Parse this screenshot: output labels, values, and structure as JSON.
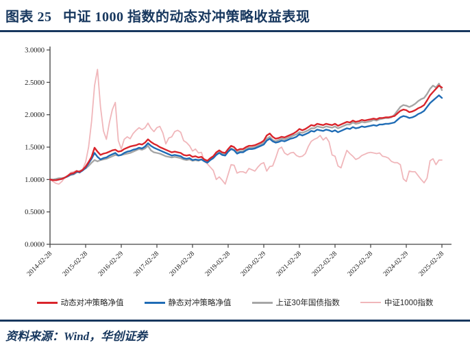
{
  "header": {
    "title": "图表 25   中证 1000 指数的动态对冲策略收益表现"
  },
  "footer": {
    "source": "资料来源：Wind，华创证券"
  },
  "colors": {
    "navy": "#17375e",
    "axis": "#404040",
    "background": "#ffffff"
  },
  "chart_data": {
    "type": "line",
    "title": "",
    "xlabel": "",
    "ylabel": "",
    "ylim": [
      0,
      3
    ],
    "grid": false,
    "legend_position": "bottom",
    "y_tick_labels": [
      "0.0000",
      "0.5000",
      "1.0000",
      "1.5000",
      "2.0000",
      "2.5000",
      "3.0000"
    ],
    "x_tick_labels": [
      "2014-02-28",
      "2015-02-28",
      "2016-02-29",
      "2017-02-28",
      "2018-02-28",
      "2019-02-28",
      "2020-02-29",
      "2021-02-28",
      "2022-02-28",
      "2023-02-28",
      "2024-02-29",
      "2025-02-28"
    ],
    "x_freq": "monthly",
    "x_start": "2014-02",
    "x_end": "2025-02",
    "series": [
      {
        "id": "dynamic-hedge",
        "name": "动态对冲策略净值",
        "color": "#d9242b",
        "line_width": 2.4,
        "values": [
          1.0,
          0.99,
          0.99,
          1.0,
          1.01,
          1.03,
          1.06,
          1.09,
          1.1,
          1.13,
          1.12,
          1.15,
          1.2,
          1.27,
          1.35,
          1.49,
          1.43,
          1.38,
          1.4,
          1.41,
          1.43,
          1.45,
          1.46,
          1.43,
          1.44,
          1.47,
          1.49,
          1.51,
          1.52,
          1.53,
          1.55,
          1.54,
          1.57,
          1.62,
          1.58,
          1.55,
          1.53,
          1.5,
          1.48,
          1.46,
          1.44,
          1.42,
          1.43,
          1.42,
          1.41,
          1.38,
          1.37,
          1.38,
          1.35,
          1.36,
          1.34,
          1.35,
          1.31,
          1.29,
          1.33,
          1.36,
          1.42,
          1.45,
          1.42,
          1.41,
          1.47,
          1.52,
          1.5,
          1.45,
          1.47,
          1.47,
          1.5,
          1.52,
          1.52,
          1.53,
          1.55,
          1.57,
          1.6,
          1.68,
          1.71,
          1.66,
          1.63,
          1.64,
          1.66,
          1.65,
          1.67,
          1.69,
          1.71,
          1.74,
          1.78,
          1.76,
          1.78,
          1.81,
          1.84,
          1.83,
          1.86,
          1.85,
          1.84,
          1.86,
          1.85,
          1.84,
          1.86,
          1.83,
          1.85,
          1.87,
          1.89,
          1.88,
          1.91,
          1.89,
          1.9,
          1.92,
          1.91,
          1.92,
          1.93,
          1.94,
          1.93,
          1.95,
          1.95,
          1.96,
          1.96,
          1.97,
          1.98,
          2.02,
          2.06,
          2.08,
          2.07,
          2.04,
          2.05,
          2.07,
          2.1,
          2.12,
          2.15,
          2.22,
          2.3,
          2.35,
          2.4,
          2.45,
          2.42
        ]
      },
      {
        "id": "static-hedge",
        "name": "静态对冲策略净值",
        "color": "#1f6cb5",
        "line_width": 2.4,
        "values": [
          1.0,
          0.99,
          0.99,
          1.0,
          1.01,
          1.03,
          1.05,
          1.08,
          1.09,
          1.12,
          1.11,
          1.14,
          1.18,
          1.25,
          1.32,
          1.41,
          1.35,
          1.31,
          1.33,
          1.34,
          1.37,
          1.39,
          1.41,
          1.37,
          1.38,
          1.41,
          1.43,
          1.44,
          1.46,
          1.47,
          1.49,
          1.48,
          1.51,
          1.56,
          1.52,
          1.49,
          1.47,
          1.45,
          1.43,
          1.41,
          1.39,
          1.37,
          1.38,
          1.37,
          1.36,
          1.33,
          1.32,
          1.33,
          1.3,
          1.31,
          1.3,
          1.31,
          1.28,
          1.26,
          1.3,
          1.33,
          1.38,
          1.41,
          1.38,
          1.37,
          1.43,
          1.47,
          1.45,
          1.4,
          1.42,
          1.42,
          1.45,
          1.47,
          1.47,
          1.48,
          1.5,
          1.52,
          1.54,
          1.6,
          1.63,
          1.59,
          1.57,
          1.58,
          1.6,
          1.59,
          1.61,
          1.63,
          1.64,
          1.66,
          1.7,
          1.68,
          1.7,
          1.72,
          1.75,
          1.74,
          1.77,
          1.76,
          1.75,
          1.77,
          1.76,
          1.74,
          1.76,
          1.73,
          1.75,
          1.77,
          1.79,
          1.78,
          1.81,
          1.79,
          1.8,
          1.82,
          1.81,
          1.82,
          1.83,
          1.84,
          1.83,
          1.85,
          1.85,
          1.86,
          1.86,
          1.87,
          1.88,
          1.92,
          1.96,
          1.98,
          1.97,
          1.95,
          1.96,
          1.98,
          2.01,
          2.03,
          2.06,
          2.12,
          2.18,
          2.22,
          2.26,
          2.3,
          2.26
        ]
      },
      {
        "id": "sse-30y-bond",
        "name": "上证30年国债指数",
        "color": "#a6a6a6",
        "line_width": 2.4,
        "values": [
          1.0,
          1.0,
          1.01,
          1.02,
          1.02,
          1.03,
          1.05,
          1.07,
          1.08,
          1.11,
          1.13,
          1.15,
          1.17,
          1.21,
          1.26,
          1.3,
          1.28,
          1.3,
          1.31,
          1.32,
          1.34,
          1.36,
          1.38,
          1.37,
          1.38,
          1.39,
          1.4,
          1.41,
          1.43,
          1.45,
          1.47,
          1.46,
          1.48,
          1.52,
          1.45,
          1.42,
          1.41,
          1.4,
          1.38,
          1.36,
          1.35,
          1.34,
          1.35,
          1.34,
          1.33,
          1.31,
          1.3,
          1.31,
          1.29,
          1.3,
          1.29,
          1.31,
          1.29,
          1.28,
          1.32,
          1.34,
          1.39,
          1.42,
          1.4,
          1.39,
          1.44,
          1.48,
          1.46,
          1.42,
          1.44,
          1.44,
          1.47,
          1.49,
          1.49,
          1.5,
          1.52,
          1.54,
          1.57,
          1.63,
          1.66,
          1.61,
          1.59,
          1.61,
          1.63,
          1.62,
          1.64,
          1.66,
          1.68,
          1.7,
          1.73,
          1.72,
          1.74,
          1.76,
          1.79,
          1.79,
          1.82,
          1.81,
          1.8,
          1.82,
          1.81,
          1.8,
          1.82,
          1.79,
          1.81,
          1.83,
          1.85,
          1.85,
          1.88,
          1.86,
          1.87,
          1.89,
          1.88,
          1.89,
          1.9,
          1.92,
          1.91,
          1.93,
          1.94,
          1.95,
          1.95,
          1.96,
          2.0,
          2.06,
          2.12,
          2.15,
          2.14,
          2.12,
          2.14,
          2.17,
          2.21,
          2.24,
          2.26,
          2.32,
          2.4,
          2.45,
          2.42,
          2.48,
          2.38
        ]
      },
      {
        "id": "csi-1000",
        "name": "中证1000指数",
        "color": "#f0b6ba",
        "line_width": 1.8,
        "values": [
          1.0,
          0.97,
          0.94,
          0.93,
          0.97,
          1.03,
          1.06,
          1.11,
          1.12,
          1.14,
          1.1,
          1.16,
          1.27,
          1.5,
          1.9,
          2.45,
          2.7,
          2.12,
          1.75,
          1.62,
          1.88,
          2.08,
          2.19,
          1.6,
          1.47,
          1.62,
          1.66,
          1.63,
          1.71,
          1.76,
          1.8,
          1.77,
          1.8,
          1.87,
          1.79,
          1.74,
          1.8,
          1.82,
          1.72,
          1.55,
          1.64,
          1.66,
          1.74,
          1.76,
          1.73,
          1.6,
          1.57,
          1.52,
          1.44,
          1.47,
          1.41,
          1.42,
          1.28,
          1.24,
          1.19,
          1.14,
          1.0,
          1.04,
          0.99,
          0.93,
          1.08,
          1.23,
          1.22,
          1.1,
          1.12,
          1.12,
          1.1,
          1.17,
          1.15,
          1.13,
          1.19,
          1.24,
          1.26,
          1.13,
          1.2,
          1.21,
          1.33,
          1.47,
          1.5,
          1.41,
          1.38,
          1.41,
          1.42,
          1.37,
          1.35,
          1.36,
          1.4,
          1.51,
          1.59,
          1.62,
          1.64,
          1.68,
          1.61,
          1.65,
          1.58,
          1.38,
          1.36,
          1.21,
          1.18,
          1.32,
          1.45,
          1.4,
          1.36,
          1.31,
          1.33,
          1.37,
          1.39,
          1.41,
          1.42,
          1.41,
          1.4,
          1.41,
          1.36,
          1.35,
          1.33,
          1.28,
          1.26,
          1.26,
          1.23,
          1.01,
          0.97,
          1.13,
          1.12,
          1.12,
          1.06,
          1.0,
          0.95,
          1.02,
          1.29,
          1.32,
          1.23,
          1.3,
          1.3
        ]
      }
    ]
  }
}
